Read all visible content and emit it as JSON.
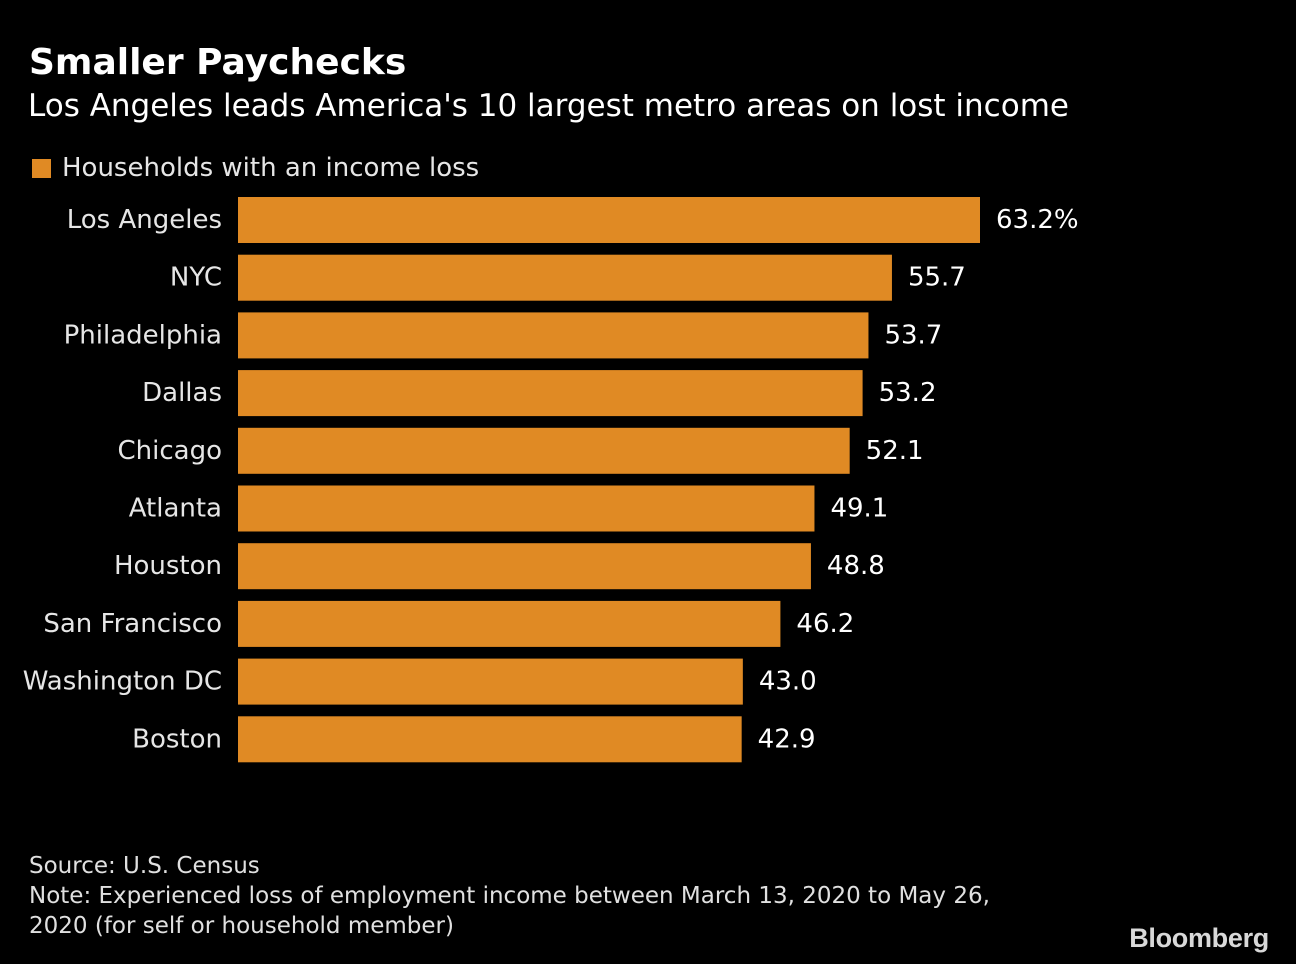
{
  "title": "Smaller Paychecks",
  "subtitle": "Los Angeles leads America's 10 largest metro areas on lost income",
  "legend": {
    "label": "Households with an income loss",
    "color": "#E08A24"
  },
  "chart_data": {
    "type": "bar",
    "orientation": "horizontal",
    "title": "Smaller Paychecks",
    "subtitle": "Los Angeles leads America's 10 largest metro areas on lost income",
    "categories": [
      "Los Angeles",
      "NYC",
      "Philadelphia",
      "Dallas",
      "Chicago",
      "Atlanta",
      "Houston",
      "San Francisco",
      "Washington DC",
      "Boston"
    ],
    "series": [
      {
        "name": "Households with an income loss",
        "values": [
          63.2,
          55.7,
          53.7,
          53.2,
          52.1,
          49.1,
          48.8,
          46.2,
          43.0,
          42.9
        ],
        "color": "#E08A24"
      }
    ],
    "value_labels": [
      "63.2%",
      "55.7",
      "53.7",
      "53.2",
      "52.1",
      "49.1",
      "48.8",
      "46.2",
      "43.0",
      "42.9"
    ],
    "xlim": [
      0,
      63.2
    ],
    "grid": false,
    "legend_position": "top-left"
  },
  "footer": {
    "source": "Source: U.S. Census",
    "note_line1": "Note: Experienced loss of employment income between March 13, 2020 to May 26,",
    "note_line2": "2020 (for self or household member)"
  },
  "logo": "Bloomberg"
}
